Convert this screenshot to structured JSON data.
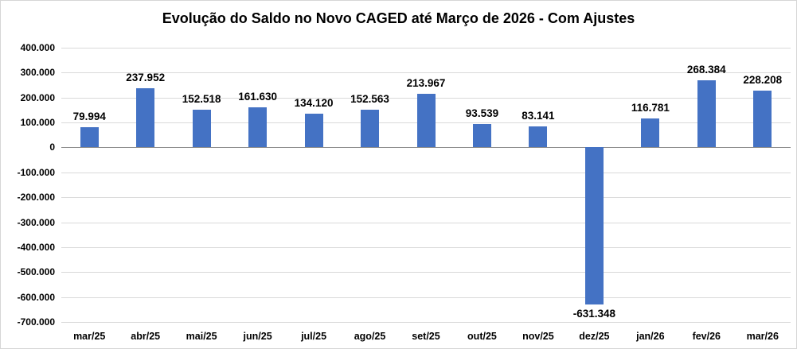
{
  "title": "Evolução do Saldo no Novo CAGED até Março de 2026 - Com Ajustes",
  "chart_data": {
    "type": "bar",
    "title": "Evolução do Saldo no Novo CAGED até Março de 2026 - Com Ajustes",
    "categories": [
      "mar/25",
      "abr/25",
      "mai/25",
      "jun/25",
      "jul/25",
      "ago/25",
      "set/25",
      "out/25",
      "nov/25",
      "dez/25",
      "jan/26",
      "fev/26",
      "mar/26"
    ],
    "values": [
      79994,
      237952,
      152518,
      161630,
      134120,
      152563,
      213967,
      93539,
      83141,
      -631348,
      116781,
      268384,
      228208
    ],
    "labels": [
      "79.994",
      "237.952",
      "152.518",
      "161.630",
      "134.120",
      "152.563",
      "213.967",
      "93.539",
      "83.141",
      "-631.348",
      "116.781",
      "268.384",
      "228.208"
    ],
    "xlabel": "",
    "ylabel": "",
    "ylim": [
      -700000,
      400000
    ],
    "ytick_step": 100000,
    "ytick_labels": [
      "400.000",
      "300.000",
      "200.000",
      "100.000",
      "0",
      "-100.000",
      "-200.000",
      "-300.000",
      "-400.000",
      "-500.000",
      "-600.000",
      "-700.000"
    ],
    "grid": true,
    "legend": false,
    "bar_color": "#4472C4",
    "gridline_color": "#D9D9D9",
    "axis_line_color": "#8C8C8C",
    "text_color": "#000000"
  }
}
